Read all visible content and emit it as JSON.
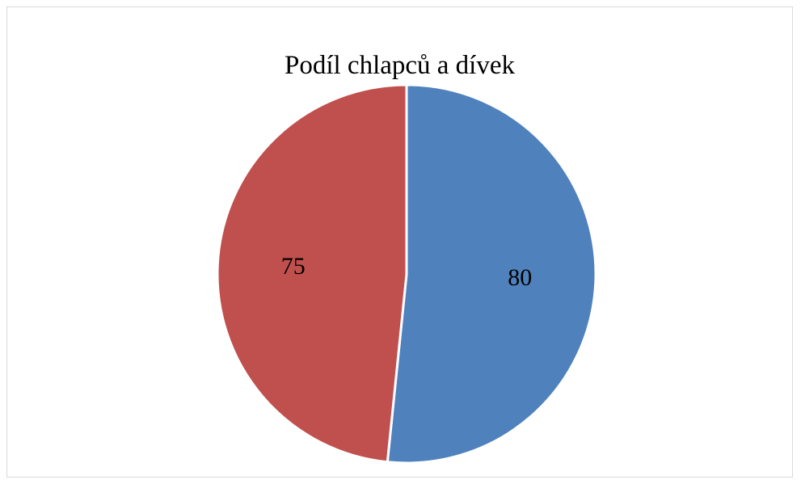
{
  "chart_data": {
    "type": "pie",
    "title": "Podíl chlapců a dívek",
    "slices": [
      {
        "value": 80,
        "label": "80",
        "color": "#4F81BD"
      },
      {
        "value": 75,
        "label": "75",
        "color": "#C0504D"
      }
    ],
    "start_angle_deg": 0,
    "direction": "clockwise",
    "legend": "none"
  }
}
